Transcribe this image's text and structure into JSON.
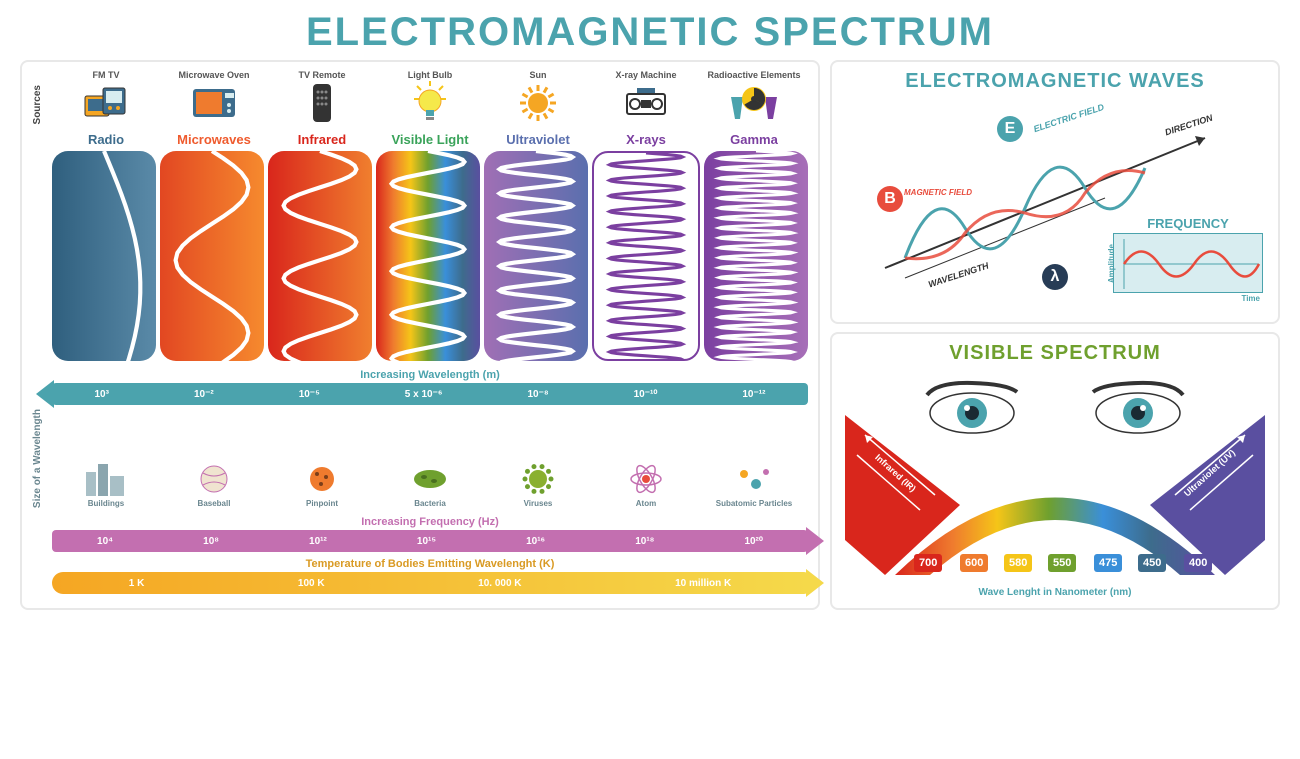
{
  "title": "ELECTROMAGNETIC SPECTRUM",
  "title_color": "#4ba3ad",
  "left_panel": {
    "sources_label": "Sources",
    "sources": [
      {
        "name": "FM  TV",
        "icon": "radio-tv",
        "color": "#3d6c8c"
      },
      {
        "name": "Microwave Oven",
        "icon": "microwave",
        "color": "#ef5b2e"
      },
      {
        "name": "TV Remote",
        "icon": "remote",
        "color": "#333333"
      },
      {
        "name": "Light Bulb",
        "icon": "bulb",
        "color": "#f5c518"
      },
      {
        "name": "Sun",
        "icon": "sun",
        "color": "#f5a623"
      },
      {
        "name": "X-ray Machine",
        "icon": "xray",
        "color": "#333333"
      },
      {
        "name": "Radioactive Elements",
        "icon": "radioactive",
        "color": "#7b3fa0"
      }
    ],
    "bands": [
      {
        "label": "Radio",
        "color": "#3d6c8c",
        "bg_from": "#2f5f7e",
        "bg_to": "#5a8aa8",
        "wave_color": "#ffffff",
        "cycles": 0.4
      },
      {
        "label": "Microwaves",
        "color": "#ef5b2e",
        "bg_from": "#e24722",
        "bg_to": "#f68a2e",
        "wave_color": "#ffffff",
        "cycles": 1.5
      },
      {
        "label": "Infrared",
        "color": "#d9261c",
        "bg_from": "#d9261c",
        "bg_to": "#f07f2e",
        "wave_color": "#ffffff",
        "cycles": 3
      },
      {
        "label": "Visible Light",
        "color": "#3aa35a",
        "rainbow": true,
        "wave_color": "#ffffff",
        "cycles": 5
      },
      {
        "label": "Ultraviolet",
        "color": "#5a6fae",
        "bg_from": "#a06fb5",
        "bg_to": "#5a6fae",
        "wave_color": "#ffffff",
        "cycles": 9
      },
      {
        "label": "X-rays",
        "color": "#7b3fa0",
        "bg_from": "#ffffff",
        "bg_to": "#ffffff",
        "wave_color": "#7b3fa0",
        "border": "#7b3fa0",
        "cycles": 14
      },
      {
        "label": "Gamma",
        "color": "#7b3fa0",
        "bg_from": "#7b3fa0",
        "bg_to": "#a76fb8",
        "wave_color": "#ffffff",
        "cycles": 22
      }
    ],
    "wavelength_arrow": {
      "title": "Increasing Wavelength (m)",
      "color": "#4ba3ad",
      "direction": "left",
      "ticks": [
        "10³",
        "10⁻²",
        "10⁻⁵",
        "5 x 10⁻⁶",
        "10⁻⁸",
        "10⁻¹⁰",
        "10⁻¹²"
      ]
    },
    "size_label": "Size of a Wavelength",
    "size_items": [
      {
        "name": "Buildings",
        "icon": "buildings"
      },
      {
        "name": "Baseball",
        "icon": "ball"
      },
      {
        "name": "Pinpoint",
        "icon": "pinpoint"
      },
      {
        "name": "Bacteria",
        "icon": "bacteria"
      },
      {
        "name": "Viruses",
        "icon": "virus"
      },
      {
        "name": "Atom",
        "icon": "atom"
      },
      {
        "name": "Subatomic Particles",
        "icon": "particles"
      }
    ],
    "frequency_arrow": {
      "title": "Increasing Frequency (Hz)",
      "color": "#c36fb0",
      "direction": "right",
      "ticks": [
        "10⁴",
        "10⁸",
        "10¹²",
        "10¹⁵",
        "10¹⁶",
        "10¹⁸",
        "10²⁰"
      ]
    },
    "temperature_arrow": {
      "title": "Temperature of Bodies Emitting Wavelenght (K)",
      "color_from": "#f5a623",
      "color_to": "#f5d94a",
      "direction": "right",
      "ticks": [
        "1 K",
        "100 K",
        "10. 000 K",
        "10 million K"
      ]
    }
  },
  "em_waves": {
    "title": "ELECTROMAGNETIC WAVES",
    "title_color": "#4ba3ad",
    "labels": {
      "electric_field": "ELECTRIC FIELD",
      "magnetic_field": "MAGNETIC FIELD",
      "direction": "DIRECTION",
      "wavelength": "WAVELENGTH"
    },
    "badge_e": "E",
    "badge_e_color": "#4ba3ad",
    "badge_b": "B",
    "badge_b_color": "#e84c3d",
    "lambda": "λ",
    "lambda_color": "#273c56",
    "frequency_box": {
      "title": "FREQUENCY",
      "title_color": "#4ba3ad",
      "x_axis": "Time",
      "y_axis": "Amplitude",
      "wave_color": "#e84c3d"
    }
  },
  "visible": {
    "title": "VISIBLE SPECTRUM",
    "title_color": "#6fa02e",
    "left_band": {
      "label": "Infrared (IR)",
      "color": "#d9261c"
    },
    "right_band": {
      "label": "Ultraviolet (UV)",
      "color": "#5a4fa0"
    },
    "nm_values": [
      "700",
      "600",
      "580",
      "550",
      "475",
      "450",
      "400"
    ],
    "nm_colors": [
      "#d9261c",
      "#ef7b2e",
      "#f5c518",
      "#6fa02e",
      "#3a8fd9",
      "#3d6c8c",
      "#5a4fa0"
    ],
    "footer": "Wave Lenght in Nanometer (nm)",
    "footer_color": "#4ba3ad"
  }
}
